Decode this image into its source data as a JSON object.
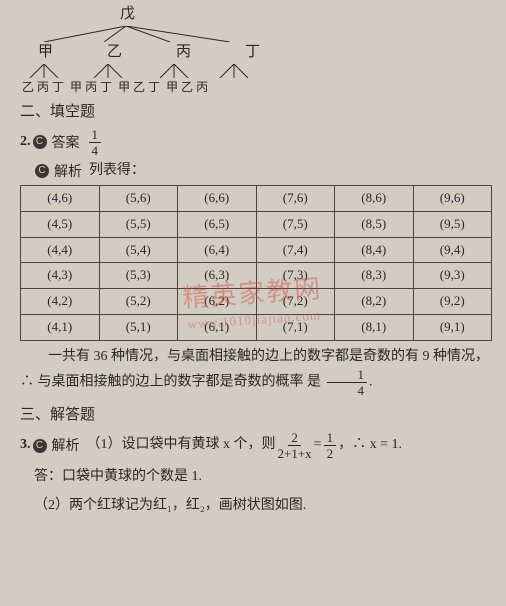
{
  "colors": {
    "bg": "#d2cdc2",
    "ink": "#2a2826",
    "border": "#4a4540",
    "wm": "rgba(210,70,60,0.44)"
  },
  "tree": {
    "root": "戊",
    "mid": [
      "甲",
      "乙",
      "丙",
      "丁"
    ],
    "leaves": [
      [
        "乙",
        "丙",
        "丁"
      ],
      [
        "甲",
        "丙",
        "丁"
      ],
      [
        "甲",
        "乙",
        "丁"
      ],
      [
        "甲",
        "乙",
        "丙"
      ]
    ]
  },
  "section2_title": "二、填空题",
  "q2": {
    "num": "2.",
    "ans_label": "答案",
    "ans_frac": {
      "n": "1",
      "d": "4"
    },
    "exp_label": "解析",
    "exp_intro": "列表得：",
    "table": {
      "rows": [
        [
          "(4,6)",
          "(5,6)",
          "(6,6)",
          "(7,6)",
          "(8,6)",
          "(9,6)"
        ],
        [
          "(4,5)",
          "(5,5)",
          "(6,5)",
          "(7,5)",
          "(8,5)",
          "(9,5)"
        ],
        [
          "(4,4)",
          "(5,4)",
          "(6,4)",
          "(7,4)",
          "(8,4)",
          "(9,4)"
        ],
        [
          "(4,3)",
          "(5,3)",
          "(6,3)",
          "(7,3)",
          "(8,3)",
          "(9,3)"
        ],
        [
          "(4,2)",
          "(5,2)",
          "(6,2)",
          "(7,2)",
          "(8,2)",
          "(9,2)"
        ],
        [
          "(4,1)",
          "(5,1)",
          "(6,1)",
          "(7,1)",
          "(8,1)",
          "(9,1)"
        ]
      ],
      "cell_fontsize": 13,
      "border_color": "#4a4540"
    },
    "conclusion_a": "一共有 36 种情况，与桌面相接触的边上的数字都是奇数的有 9 种情况，∴ 与桌面相接触的边上的数字都是奇数的概率",
    "conclusion_b": "是",
    "conc_frac": {
      "n": "1",
      "d": "4"
    },
    "conclusion_c": "."
  },
  "section3_title": "三、解答题",
  "q3": {
    "num": "3.",
    "exp_label": "解析",
    "part1_a": "（1）设口袋中有黄球 x 个，则",
    "eq_frac1": {
      "n": "2",
      "d": "2+1+x"
    },
    "eq_mid": "=",
    "eq_frac2": {
      "n": "1",
      "d": "2"
    },
    "part1_b": "，∴ x = 1.",
    "ans_line": "答：口袋中黄球的个数是 1.",
    "part2": "（2）两个红球记为红₁，红₂，画树状图如图."
  },
  "watermark": {
    "main": "精英家教网",
    "sub": "www.1010jiajiao.com"
  }
}
